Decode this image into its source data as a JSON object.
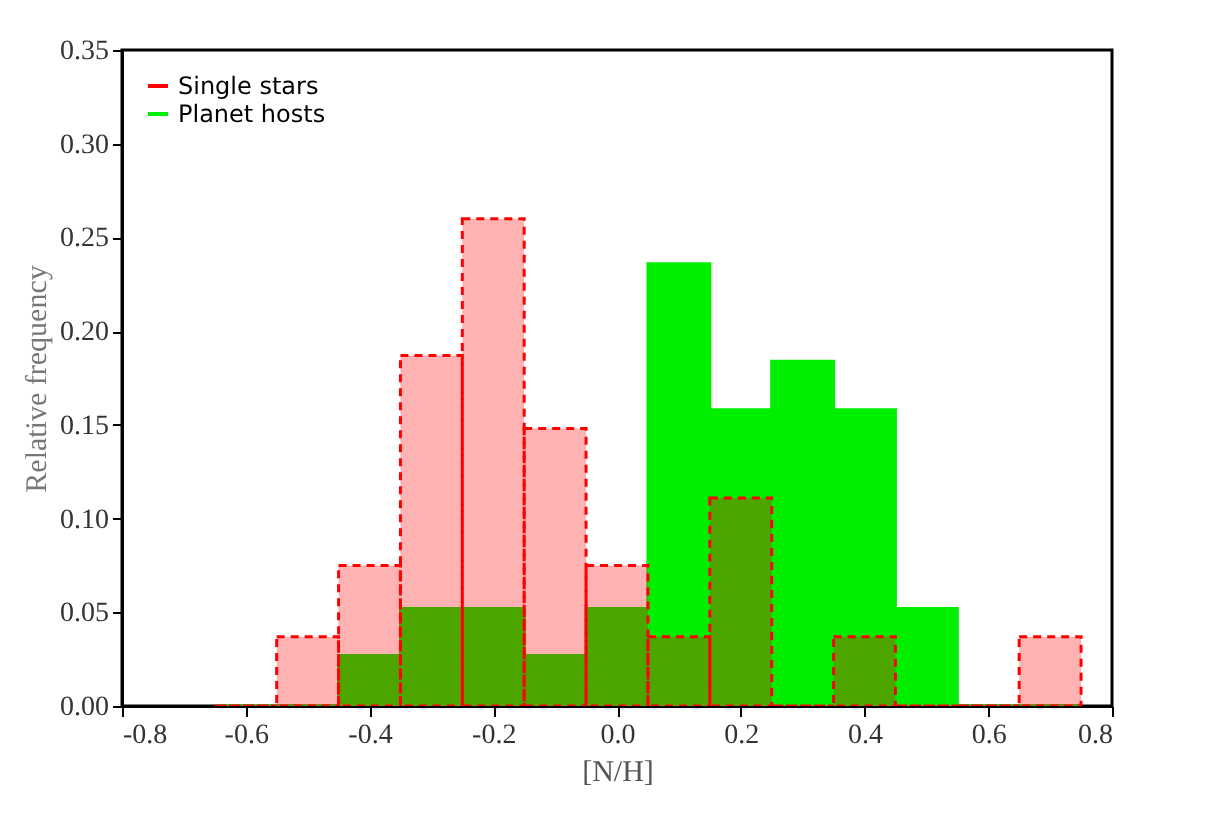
{
  "chart_data": {
    "type": "histogram",
    "xlabel": "[N/H]",
    "ylabel": "Relative frequency",
    "bins": [
      -0.65,
      -0.55,
      -0.45,
      -0.35,
      -0.25,
      -0.15,
      -0.05,
      0.05,
      0.15,
      0.25,
      0.35,
      0.45,
      0.55,
      0.65,
      0.75
    ],
    "series": [
      {
        "name": "Single stars",
        "color": "#ff0000",
        "line_style": "dashed",
        "values": [
          0,
          0.037,
          0.075,
          0.187,
          0.26,
          0.148,
          0.075,
          0.037,
          0.111,
          0,
          0.037,
          0,
          0,
          0.037
        ]
      },
      {
        "name": "Planet hosts",
        "color": "#00ee00",
        "line_style": "solid",
        "values": [
          0,
          0,
          0.027,
          0.052,
          0.052,
          0.027,
          0.052,
          0.236,
          0.158,
          0.184,
          0.158,
          0.052,
          0,
          0
        ]
      }
    ],
    "xlim": [
      -0.8,
      0.8
    ],
    "xticks": [
      -0.8,
      -0.6,
      -0.4,
      -0.2,
      {
        "value": 0,
        "label": "0.0"
      },
      0.2,
      0.4,
      0.6,
      0.8
    ],
    "ylim": [
      0,
      0.35
    ],
    "yticks": [
      {
        "value": 0,
        "label": "0.00"
      },
      0.05,
      {
        "value": 0.1,
        "label": "0.10"
      },
      0.15,
      {
        "value": 0.2,
        "label": "0.20"
      },
      0.25,
      {
        "value": 0.3,
        "label": "0.30"
      },
      0.35
    ],
    "grid": false,
    "legend": "top left"
  }
}
